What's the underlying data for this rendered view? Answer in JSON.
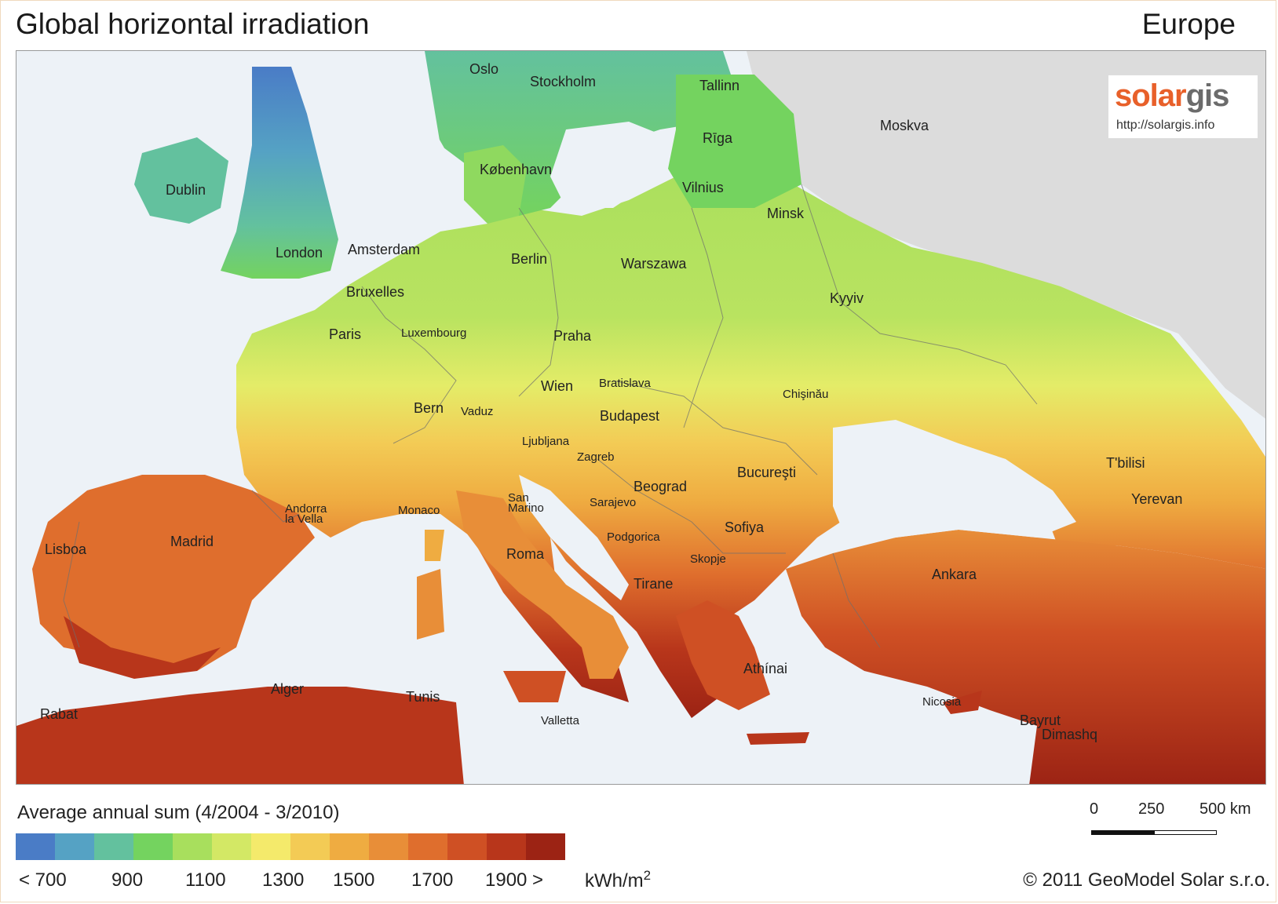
{
  "header": {
    "title": "Global horizontal irradiation",
    "region": "Europe"
  },
  "logo": {
    "brand_part1": "solar",
    "brand_part2": "gis",
    "url": "http://solargis.info"
  },
  "cities": [
    {
      "name": "Oslo"
    },
    {
      "name": "Stockholm"
    },
    {
      "name": "Tallinn"
    },
    {
      "name": "Moskva"
    },
    {
      "name": "Rīga"
    },
    {
      "name": "København"
    },
    {
      "name": "Dublin"
    },
    {
      "name": "Vilnius"
    },
    {
      "name": "Minsk"
    },
    {
      "name": "London"
    },
    {
      "name": "Amsterdam"
    },
    {
      "name": "Berlin"
    },
    {
      "name": "Warszawa"
    },
    {
      "name": "Bruxelles"
    },
    {
      "name": "Kyyiv"
    },
    {
      "name": "Paris"
    },
    {
      "name": "Luxembourg"
    },
    {
      "name": "Praha"
    },
    {
      "name": "Wien"
    },
    {
      "name": "Bratislava"
    },
    {
      "name": "Chişinău"
    },
    {
      "name": "Bern"
    },
    {
      "name": "Vaduz"
    },
    {
      "name": "Budapest"
    },
    {
      "name": "Ljubljana"
    },
    {
      "name": "Zagreb"
    },
    {
      "name": "Bucureşti"
    },
    {
      "name": "T'bilisi"
    },
    {
      "name": "Andorra"
    },
    {
      "name": "la Vella"
    },
    {
      "name": "Monaco"
    },
    {
      "name": "San"
    },
    {
      "name": "Marino"
    },
    {
      "name": "Beograd"
    },
    {
      "name": "Sarajevo"
    },
    {
      "name": "Yerevan"
    },
    {
      "name": "Sofiya"
    },
    {
      "name": "Lisboa"
    },
    {
      "name": "Madrid"
    },
    {
      "name": "Podgorica"
    },
    {
      "name": "Roma"
    },
    {
      "name": "Skopje"
    },
    {
      "name": "Ankara"
    },
    {
      "name": "Tirane"
    },
    {
      "name": "Athínai"
    },
    {
      "name": "Alger"
    },
    {
      "name": "Tunis"
    },
    {
      "name": "Nicosia"
    },
    {
      "name": "Rabat"
    },
    {
      "name": "Valletta"
    },
    {
      "name": "Bayrut"
    },
    {
      "name": "Dimashq"
    }
  ],
  "legend": {
    "title": "Average annual sum (4/2004 - 3/2010)",
    "colors": [
      "#4a7cc6",
      "#55a2c4",
      "#63c19e",
      "#74d35f",
      "#a8df5d",
      "#d3e865",
      "#f4ea6b",
      "#f3cb55",
      "#efac41",
      "#e88e38",
      "#df6e2d",
      "#cf5024",
      "#b8361b",
      "#9c2314"
    ],
    "ticks": [
      "< 700",
      "900",
      "1100",
      "1300",
      "1500",
      "1700",
      "1900 >"
    ],
    "unit": "kWh/m",
    "unit_sup": "2"
  },
  "scale_bar": {
    "labels": [
      "0",
      "250",
      "500 km"
    ]
  },
  "copyright": "© 2011 GeoModel Solar s.r.o."
}
